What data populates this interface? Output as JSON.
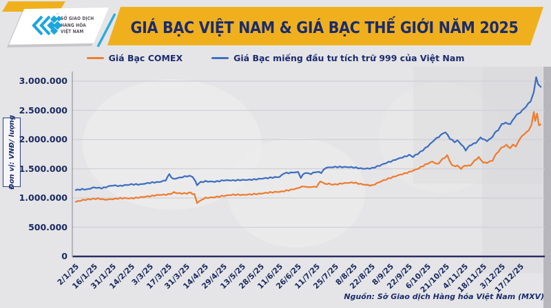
{
  "header": {
    "logo": {
      "org_lines": [
        "SỞ GIAO DỊCH",
        "HÀNG HÓA",
        "VIỆT NAM"
      ],
      "tm": "™"
    },
    "title": "GIÁ BẠC VIỆT NAM & GIÁ BẠC THẾ GIỚI NĂM 2025"
  },
  "legend": [
    {
      "label": "Giá Bạc COMEX",
      "color": "#EE7D2F"
    },
    {
      "label": "Giá Bạc miếng đầu tư tích trữ 999 của Việt Nam",
      "color": "#3E6FC1"
    }
  ],
  "axis": {
    "unit_label": "Đơn vị: VNĐ/ lượng"
  },
  "source": "Nguồn: Sở Giao dịch Hàng hóa Việt Nam (MXV)",
  "colors": {
    "background": "#e5e5e7",
    "accent_yellow": "#F0B01E",
    "navy_text": "#1b2c6e",
    "grid": "#cfcfd6",
    "x_axis_line": "#2b2b66",
    "y_axis_line": "#a3a3ad",
    "logo_cyan": "#1BA6DE"
  },
  "chart_data": {
    "type": "line",
    "title": "GIÁ BẠC VIỆT NAM & GIÁ BẠC THẾ GIỚI NĂM 2025",
    "ylabel": "Đơn vị: VNĐ/ lượng",
    "xlabel": "",
    "ylim": [
      0,
      3000000
    ],
    "ytick_step": 500000,
    "grid": true,
    "legend_position": "top",
    "x_unit": "tick index; 0 = 2/1/25, one tick ≈ 2 weeks of trading days",
    "x_tick_labels": [
      "2/1/25",
      "16/1/25",
      "31/1/25",
      "14/2/25",
      "3/3/25",
      "17/3/25",
      "31/3/25",
      "14/4/25",
      "29/4/25",
      "13/5/25",
      "28/5/25",
      "11/6/25",
      "26/6/25",
      "11/7/25",
      "25/7/25",
      "8/8/25",
      "22/8/25",
      "8/9/25",
      "22/9/25",
      "6/10/25",
      "21/10/25",
      "4/11/25",
      "18/11/25",
      "3/12/25",
      "17/12/25"
    ],
    "series": [
      {
        "name": "Giá Bạc COMEX",
        "color": "#EE7D2F",
        "points": [
          [
            0,
            930000
          ],
          [
            0.4,
            960000
          ],
          [
            0.8,
            975000
          ],
          [
            1.2,
            985000
          ],
          [
            1.6,
            965000
          ],
          [
            2,
            975000
          ],
          [
            2.4,
            990000
          ],
          [
            3,
            1000000
          ],
          [
            3.5,
            1015000
          ],
          [
            4,
            1025000
          ],
          [
            4.5,
            1050000
          ],
          [
            5,
            1065000
          ],
          [
            5.3,
            1090000
          ],
          [
            5.6,
            1075000
          ],
          [
            6,
            1075000
          ],
          [
            6.2,
            1095000
          ],
          [
            6.4,
            1060000
          ],
          [
            6.55,
            920000
          ],
          [
            6.8,
            965000
          ],
          [
            7,
            1005000
          ],
          [
            7.5,
            1020000
          ],
          [
            8,
            1035000
          ],
          [
            8.5,
            1050000
          ],
          [
            9,
            1055000
          ],
          [
            9.5,
            1070000
          ],
          [
            10,
            1075000
          ],
          [
            10.5,
            1090000
          ],
          [
            11,
            1105000
          ],
          [
            11.5,
            1140000
          ],
          [
            12,
            1170000
          ],
          [
            12.3,
            1200000
          ],
          [
            12.6,
            1185000
          ],
          [
            13,
            1190000
          ],
          [
            13.2,
            1290000
          ],
          [
            13.45,
            1240000
          ],
          [
            14,
            1235000
          ],
          [
            14.5,
            1250000
          ],
          [
            15,
            1260000
          ],
          [
            15.5,
            1235000
          ],
          [
            16,
            1220000
          ],
          [
            16.5,
            1285000
          ],
          [
            17,
            1340000
          ],
          [
            17.5,
            1400000
          ],
          [
            18,
            1450000
          ],
          [
            18.5,
            1505000
          ],
          [
            19,
            1585000
          ],
          [
            19.25,
            1620000
          ],
          [
            19.5,
            1580000
          ],
          [
            19.8,
            1660000
          ],
          [
            20.05,
            1720000
          ],
          [
            20.3,
            1560000
          ],
          [
            20.6,
            1545000
          ],
          [
            20.8,
            1510000
          ],
          [
            21,
            1550000
          ],
          [
            21.3,
            1560000
          ],
          [
            21.75,
            1700000
          ],
          [
            22,
            1610000
          ],
          [
            22.2,
            1600000
          ],
          [
            22.5,
            1650000
          ],
          [
            22.8,
            1800000
          ],
          [
            23,
            1860000
          ],
          [
            23.25,
            1900000
          ],
          [
            23.45,
            1860000
          ],
          [
            23.6,
            1920000
          ],
          [
            23.75,
            1880000
          ],
          [
            24,
            2035000
          ],
          [
            24.2,
            2090000
          ],
          [
            24.45,
            2150000
          ],
          [
            24.6,
            2250000
          ],
          [
            24.72,
            2460000
          ],
          [
            24.8,
            2330000
          ],
          [
            24.9,
            2450000
          ],
          [
            25,
            2230000
          ],
          [
            25.08,
            2260000
          ]
        ]
      },
      {
        "name": "Giá Bạc miếng đầu tư tích trữ 999 của Việt Nam",
        "color": "#3E6FC1",
        "points": [
          [
            0,
            1130000
          ],
          [
            0.35,
            1155000
          ],
          [
            0.7,
            1150000
          ],
          [
            1,
            1185000
          ],
          [
            1.4,
            1175000
          ],
          [
            2,
            1210000
          ],
          [
            2.4,
            1200000
          ],
          [
            3,
            1240000
          ],
          [
            3.5,
            1235000
          ],
          [
            4,
            1255000
          ],
          [
            4.5,
            1270000
          ],
          [
            4.85,
            1310000
          ],
          [
            5.05,
            1400000
          ],
          [
            5.25,
            1330000
          ],
          [
            5.5,
            1345000
          ],
          [
            6,
            1370000
          ],
          [
            6.3,
            1375000
          ],
          [
            6.45,
            1290000
          ],
          [
            6.55,
            1225000
          ],
          [
            6.75,
            1270000
          ],
          [
            7,
            1290000
          ],
          [
            7.5,
            1285000
          ],
          [
            8,
            1300000
          ],
          [
            8.5,
            1295000
          ],
          [
            9,
            1310000
          ],
          [
            9.5,
            1320000
          ],
          [
            10,
            1330000
          ],
          [
            10.5,
            1340000
          ],
          [
            11,
            1360000
          ],
          [
            11.25,
            1430000
          ],
          [
            11.6,
            1435000
          ],
          [
            12,
            1445000
          ],
          [
            12.15,
            1350000
          ],
          [
            12.35,
            1425000
          ],
          [
            12.7,
            1420000
          ],
          [
            13,
            1445000
          ],
          [
            13.25,
            1435000
          ],
          [
            13.5,
            1525000
          ],
          [
            14,
            1535000
          ],
          [
            14.5,
            1525000
          ],
          [
            15,
            1520000
          ],
          [
            15.5,
            1505000
          ],
          [
            16,
            1515000
          ],
          [
            16.4,
            1560000
          ],
          [
            17,
            1620000
          ],
          [
            17.5,
            1685000
          ],
          [
            18,
            1740000
          ],
          [
            18.2,
            1700000
          ],
          [
            18.6,
            1780000
          ],
          [
            19,
            1880000
          ],
          [
            19.4,
            2000000
          ],
          [
            19.7,
            2080000
          ],
          [
            19.95,
            2125000
          ],
          [
            20.2,
            2010000
          ],
          [
            20.45,
            1955000
          ],
          [
            20.6,
            1975000
          ],
          [
            20.8,
            1930000
          ],
          [
            21.05,
            1825000
          ],
          [
            21.35,
            1915000
          ],
          [
            21.6,
            1950000
          ],
          [
            21.85,
            2040000
          ],
          [
            22.05,
            1990000
          ],
          [
            22.2,
            1975000
          ],
          [
            22.4,
            2020000
          ],
          [
            22.6,
            2100000
          ],
          [
            22.8,
            2170000
          ],
          [
            23,
            2260000
          ],
          [
            23.2,
            2290000
          ],
          [
            23.45,
            2270000
          ],
          [
            23.7,
            2390000
          ],
          [
            24,
            2470000
          ],
          [
            24.3,
            2560000
          ],
          [
            24.55,
            2660000
          ],
          [
            24.72,
            2800000
          ],
          [
            24.85,
            3070000
          ],
          [
            24.95,
            2940000
          ],
          [
            25.1,
            2900000
          ]
        ]
      }
    ]
  }
}
